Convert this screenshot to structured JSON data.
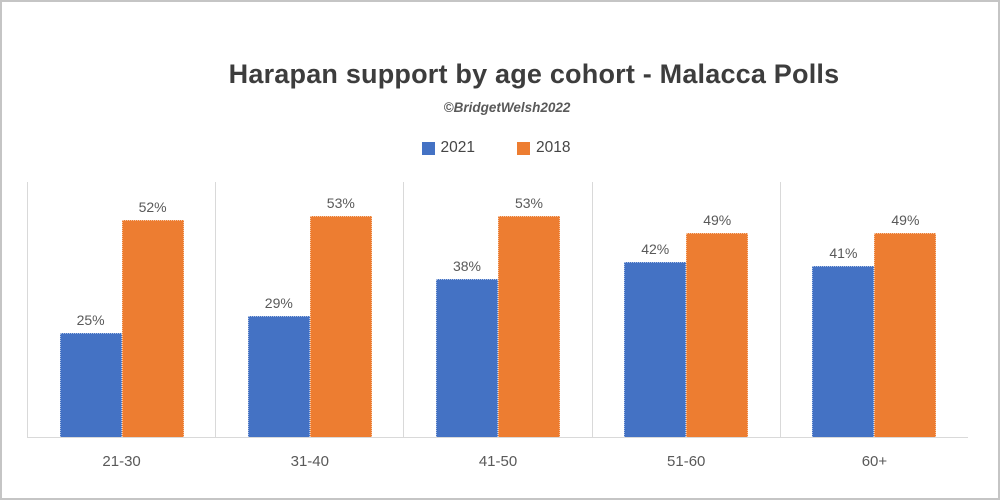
{
  "frame": {
    "background": "#ffffff",
    "border_color": "#c5c5c5",
    "gridline_color": "#d9d9d9"
  },
  "chart_data": {
    "type": "bar",
    "title": "Harapan support by age cohort - Malacca Polls",
    "subtitle": "©BridgetWelsh2022",
    "categories": [
      "21-30",
      "31-40",
      "41-50",
      "51-60",
      "60+"
    ],
    "series": [
      {
        "name": "2021",
        "color": "#4472C4",
        "values": [
          25,
          29,
          38,
          42,
          41
        ],
        "labels": [
          "25%",
          "29%",
          "38%",
          "42%",
          "41%"
        ]
      },
      {
        "name": "2018",
        "color": "#ED7D31",
        "values": [
          52,
          53,
          53,
          49,
          49
        ],
        "labels": [
          "52%",
          "53%",
          "53%",
          "49%",
          "49%"
        ]
      }
    ],
    "xlabel": "",
    "ylabel": "",
    "ylim": [
      0,
      61
    ],
    "grid": "vertical-category-separators",
    "legend_position": "top-center",
    "value_labels": "outside-end"
  }
}
